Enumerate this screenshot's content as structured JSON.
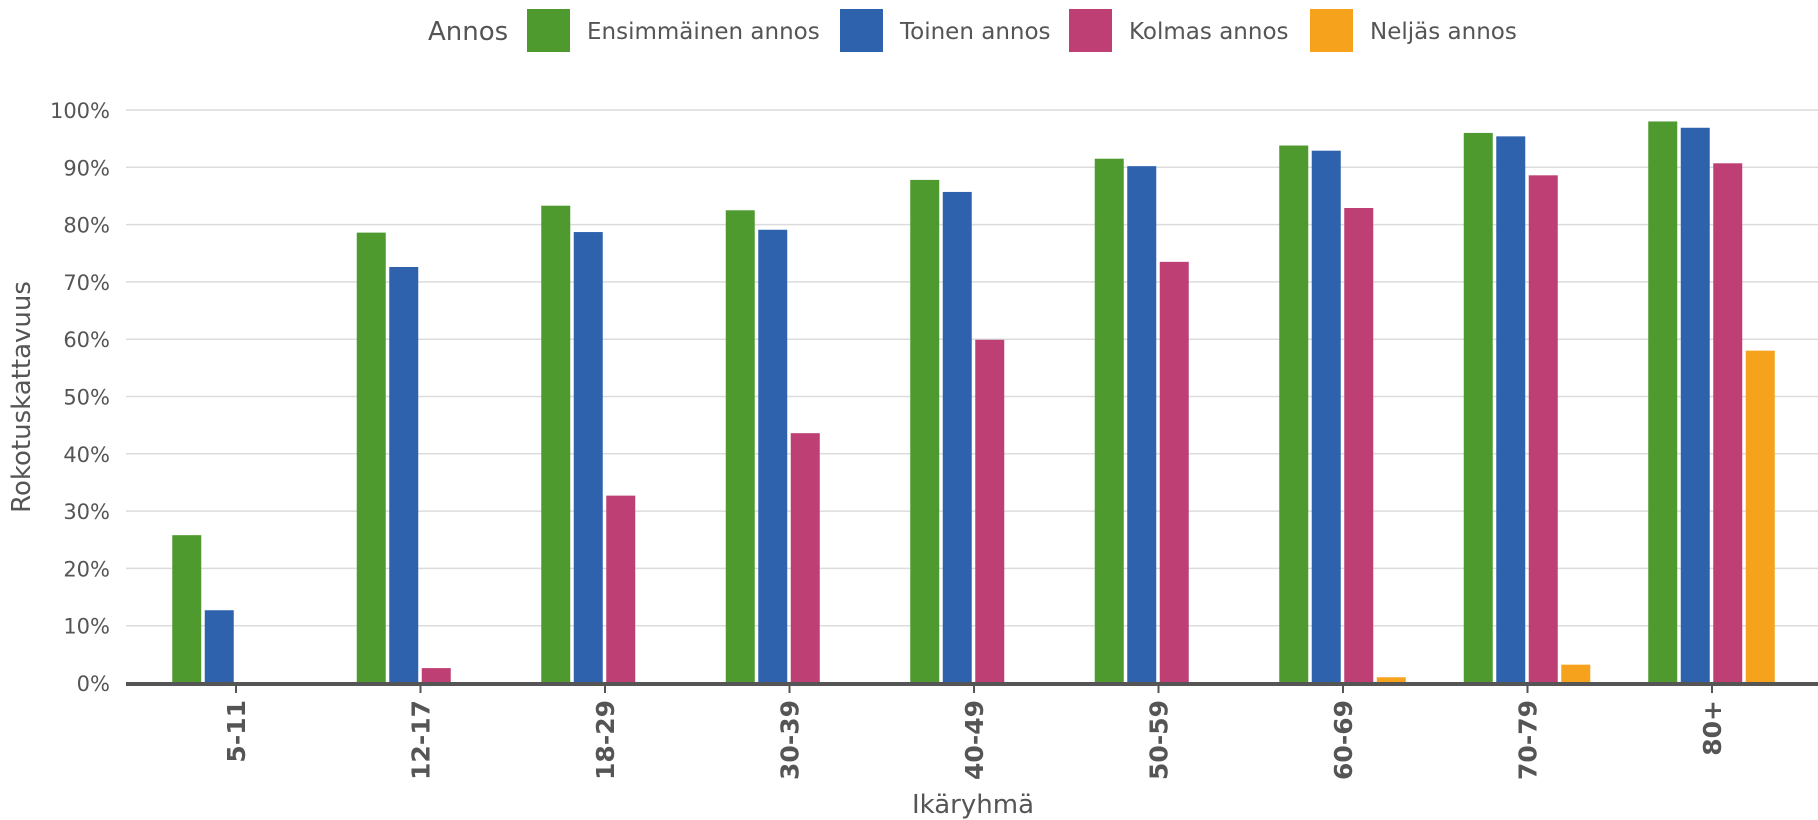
{
  "chart_data": {
    "type": "bar",
    "legend_title": "Annos",
    "legend_position": "top-center",
    "categories": [
      "5-11",
      "12-17",
      "18-29",
      "30-39",
      "40-49",
      "50-59",
      "60-69",
      "70-79",
      "80+"
    ],
    "series": [
      {
        "name": "Ensimmäinen annos",
        "color": "#4f9a2f",
        "values": [
          25.8,
          78.6,
          83.3,
          82.5,
          87.8,
          91.5,
          93.8,
          96.0,
          98.0
        ]
      },
      {
        "name": "Toinen annos",
        "color": "#2f62ad",
        "values": [
          12.7,
          72.6,
          78.7,
          79.1,
          85.7,
          90.2,
          92.9,
          95.4,
          96.9
        ]
      },
      {
        "name": "Kolmas annos",
        "color": "#bd3f73",
        "values": [
          0,
          2.6,
          32.7,
          43.6,
          59.9,
          73.5,
          82.9,
          88.6,
          90.7
        ]
      },
      {
        "name": "Neljäs annos",
        "color": "#f7a21c",
        "values": [
          0,
          0,
          0,
          0,
          0,
          0,
          1.0,
          3.2,
          58.0
        ]
      }
    ],
    "xlabel": "Ikäryhmä",
    "ylabel": "Rokotuskattavuus",
    "ylim": [
      0,
      100
    ],
    "yticks": [
      "0%",
      "10%",
      "20%",
      "30%",
      "40%",
      "50%",
      "60%",
      "70%",
      "80%",
      "90%",
      "100%"
    ],
    "grid": true
  }
}
